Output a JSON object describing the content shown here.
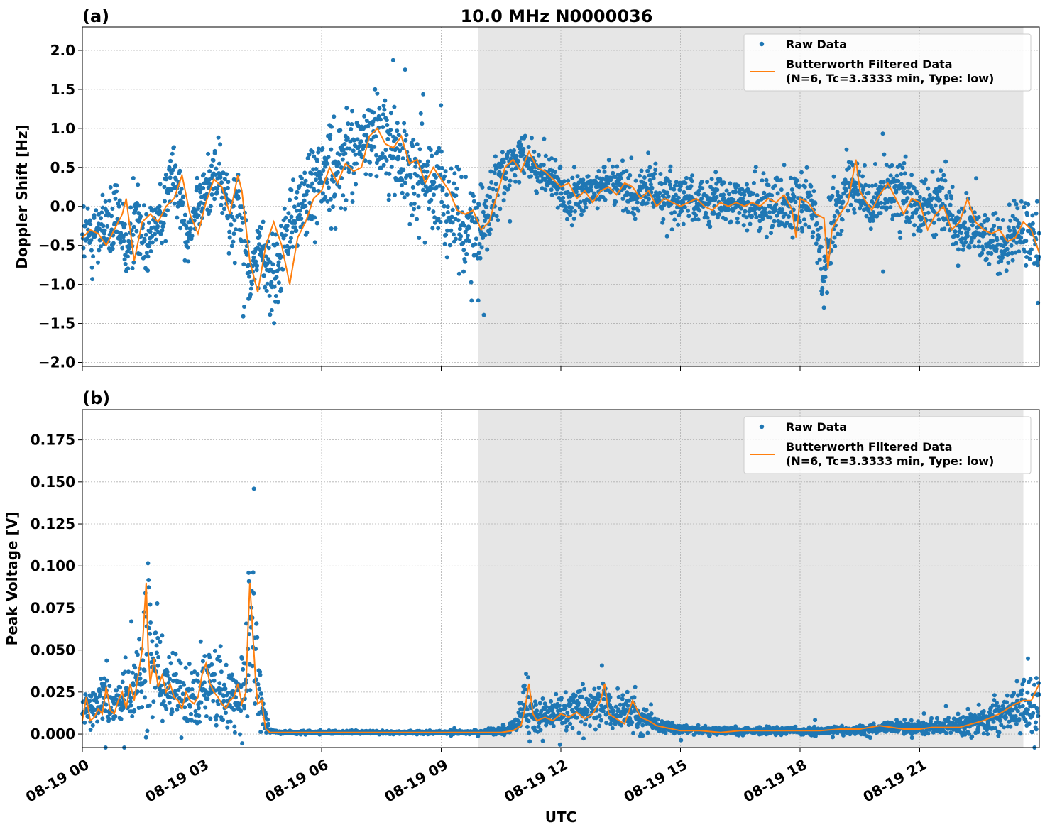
{
  "figure": {
    "title": "10.0 MHz N0000036",
    "xlabel": "UTC",
    "x_tick_labels": [
      "08-19 00",
      "08-19 03",
      "08-19 06",
      "08-19 09",
      "08-19 12",
      "08-19 15",
      "08-19 18",
      "08-19 21"
    ],
    "colors": {
      "raw": "#1f77b4",
      "filtered": "#ff7f0e",
      "shade": "#e6e6e6",
      "grid": "#b0b0b0"
    }
  },
  "chart_data": [
    {
      "type": "scatter",
      "panel_label": "(a)",
      "title": "10.0 MHz N0000036",
      "ylabel": "Doppler Shift [Hz]",
      "xlabel": "",
      "x_unit": "hours UTC since 08-19 00",
      "xlim": [
        0,
        24
      ],
      "ylim": [
        -2.05,
        2.3
      ],
      "y_ticks": [
        -2.0,
        -1.5,
        -1.0,
        -0.5,
        0.0,
        0.5,
        1.0,
        1.5,
        2.0
      ],
      "y_tick_labels": [
        "−2.0",
        "−1.5",
        "−1.0",
        "−0.5",
        "0.0",
        "0.5",
        "1.0",
        "1.5",
        "2.0"
      ],
      "shaded_x": [
        9.93,
        23.6
      ],
      "grid": true,
      "legend": {
        "placement": "top-right",
        "entries": [
          "Raw Data",
          "Butterworth Filtered Data",
          "(N=6, Tc=3.3333 min, Type: low)"
        ]
      },
      "series": [
        {
          "name": "Raw Data",
          "kind": "points",
          "center_x": [
            0,
            0.5,
            0.9,
            1.15,
            1.35,
            1.6,
            2.0,
            2.3,
            2.6,
            2.85,
            3.1,
            3.4,
            3.7,
            3.9,
            4.2,
            4.45,
            4.8,
            5.2,
            5.6,
            6.0,
            6.5,
            7.0,
            7.4,
            7.8,
            8.2,
            8.6,
            9.0,
            9.3,
            9.6,
            9.9,
            10.2,
            10.6,
            11.0,
            11.4,
            11.8,
            12.2,
            12.6,
            13.0,
            13.4,
            13.8,
            14.2,
            14.6,
            15.0,
            15.5,
            16.0,
            16.5,
            17.0,
            17.5,
            17.9,
            18.3,
            18.6,
            18.9,
            19.3,
            19.7,
            20.1,
            20.5,
            21.0,
            21.5,
            22.0,
            22.5,
            23.0,
            23.4,
            24.0
          ],
          "center_y": [
            -0.4,
            -0.3,
            -0.2,
            -0.6,
            -0.1,
            -0.4,
            0.0,
            0.4,
            -0.3,
            -0.1,
            0.25,
            0.45,
            -0.2,
            0.1,
            -0.9,
            -0.5,
            -0.9,
            -0.2,
            0.1,
            0.35,
            0.55,
            0.8,
            1.0,
            0.7,
            0.5,
            0.3,
            0.2,
            -0.05,
            -0.25,
            -0.3,
            0.0,
            0.5,
            0.65,
            0.45,
            0.3,
            0.05,
            0.15,
            0.3,
            0.25,
            0.15,
            0.2,
            0.15,
            0.05,
            0.05,
            0.05,
            0.05,
            0.0,
            0.1,
            0.05,
            0.0,
            -0.8,
            0.0,
            0.4,
            0.0,
            0.1,
            0.2,
            -0.1,
            0.1,
            -0.3,
            -0.3,
            -0.5,
            -0.3,
            -0.4
          ],
          "spread": [
            0.4,
            0.4,
            0.4,
            0.35,
            0.4,
            0.4,
            0.4,
            0.35,
            0.35,
            0.35,
            0.35,
            0.35,
            0.4,
            0.45,
            0.35,
            0.45,
            0.5,
            0.5,
            0.5,
            0.5,
            0.5,
            0.5,
            0.5,
            0.55,
            0.55,
            0.55,
            0.55,
            0.55,
            0.6,
            0.65,
            0.55,
            0.3,
            0.25,
            0.25,
            0.25,
            0.25,
            0.25,
            0.25,
            0.25,
            0.25,
            0.25,
            0.3,
            0.3,
            0.3,
            0.3,
            0.3,
            0.3,
            0.35,
            0.35,
            0.35,
            0.4,
            0.4,
            0.4,
            0.35,
            0.35,
            0.35,
            0.35,
            0.35,
            0.35,
            0.35,
            0.35,
            0.35,
            0.4
          ]
        },
        {
          "name": "Butterworth Filtered Data",
          "kind": "line",
          "x": [
            0,
            0.2,
            0.4,
            0.6,
            0.8,
            1.0,
            1.1,
            1.3,
            1.5,
            1.7,
            1.9,
            2.1,
            2.3,
            2.5,
            2.7,
            2.9,
            3.1,
            3.3,
            3.5,
            3.7,
            3.9,
            4.0,
            4.2,
            4.4,
            4.6,
            4.8,
            5.0,
            5.2,
            5.4,
            5.6,
            5.8,
            6.0,
            6.2,
            6.4,
            6.6,
            6.8,
            7.0,
            7.2,
            7.4,
            7.6,
            7.8,
            8.0,
            8.2,
            8.4,
            8.6,
            8.8,
            9.0,
            9.2,
            9.4,
            9.6,
            9.8,
            10.0,
            10.2,
            10.4,
            10.6,
            10.8,
            11.0,
            11.2,
            11.4,
            11.6,
            11.8,
            12.0,
            12.2,
            12.4,
            12.6,
            12.8,
            13.0,
            13.2,
            13.4,
            13.6,
            13.8,
            14.0,
            14.2,
            14.4,
            14.6,
            14.8,
            15.0,
            15.2,
            15.4,
            15.6,
            15.8,
            16.0,
            16.2,
            16.4,
            16.6,
            16.8,
            17.0,
            17.2,
            17.4,
            17.6,
            17.8,
            17.9,
            18.0,
            18.2,
            18.4,
            18.6,
            18.7,
            18.8,
            19.0,
            19.2,
            19.4,
            19.5,
            19.6,
            19.8,
            20.0,
            20.2,
            20.4,
            20.6,
            20.8,
            21.0,
            21.2,
            21.4,
            21.6,
            21.8,
            22.0,
            22.2,
            22.4,
            22.6,
            22.8,
            23.0,
            23.2,
            23.4,
            23.6,
            23.8,
            24.0
          ],
          "y": [
            -0.4,
            -0.3,
            -0.35,
            -0.5,
            -0.3,
            -0.1,
            0.1,
            -0.7,
            -0.2,
            -0.1,
            -0.2,
            0.0,
            0.1,
            0.4,
            -0.1,
            -0.35,
            0.05,
            0.35,
            0.25,
            -0.1,
            0.4,
            0.2,
            -0.7,
            -1.1,
            -0.5,
            -0.2,
            -0.5,
            -1.0,
            -0.4,
            -0.2,
            0.1,
            0.2,
            0.5,
            0.3,
            0.55,
            0.45,
            0.5,
            0.9,
            1.0,
            0.8,
            0.75,
            0.9,
            0.55,
            0.6,
            0.3,
            0.5,
            0.35,
            0.2,
            -0.05,
            -0.1,
            -0.05,
            -0.3,
            -0.2,
            0.15,
            0.5,
            0.6,
            0.45,
            0.7,
            0.5,
            0.45,
            0.35,
            0.25,
            0.3,
            0.1,
            0.2,
            0.05,
            0.2,
            0.25,
            0.15,
            0.3,
            0.25,
            0.1,
            0.2,
            0.0,
            0.1,
            0.05,
            0.0,
            0.05,
            0.1,
            0.0,
            -0.05,
            0.05,
            0.0,
            0.05,
            0.0,
            0.05,
            0.0,
            0.1,
            0.05,
            0.15,
            -0.05,
            -0.4,
            0.1,
            0.05,
            -0.1,
            -0.15,
            -0.8,
            -0.3,
            -0.1,
            0.05,
            0.6,
            0.2,
            0.1,
            -0.05,
            0.15,
            0.3,
            0.1,
            -0.1,
            0.1,
            0.05,
            -0.3,
            -0.1,
            0.0,
            -0.3,
            -0.2,
            0.1,
            -0.2,
            -0.3,
            -0.35,
            -0.3,
            -0.45,
            -0.4,
            -0.2,
            -0.3,
            -0.6
          ]
        }
      ]
    },
    {
      "type": "scatter",
      "panel_label": "(b)",
      "title": "",
      "ylabel": "Peak Voltage [V]",
      "xlabel": "UTC",
      "x_unit": "hours UTC since 08-19 00",
      "xlim": [
        0,
        24
      ],
      "ylim": [
        -0.008,
        0.193
      ],
      "y_ticks": [
        0.0,
        0.025,
        0.05,
        0.075,
        0.1,
        0.125,
        0.15,
        0.175
      ],
      "y_tick_labels": [
        "0.000",
        "0.025",
        "0.050",
        "0.075",
        "0.100",
        "0.125",
        "0.150",
        "0.175"
      ],
      "shaded_x": [
        9.93,
        23.6
      ],
      "grid": true,
      "legend": {
        "placement": "top-right",
        "entries": [
          "Raw Data",
          "Butterworth Filtered Data",
          "(N=6, Tc=3.3333 min, Type: low)"
        ]
      },
      "series": [
        {
          "name": "Raw Data",
          "kind": "points",
          "center_x": [
            0,
            0.3,
            0.6,
            0.9,
            1.2,
            1.5,
            1.6,
            1.8,
            2.1,
            2.5,
            2.9,
            3.2,
            3.5,
            3.8,
            4.1,
            4.25,
            4.4,
            4.55,
            4.7,
            5.0,
            6.0,
            7.0,
            8.0,
            9.0,
            10.0,
            10.5,
            10.9,
            11.1,
            11.3,
            11.7,
            12.2,
            12.7,
            13.0,
            13.3,
            13.7,
            14.0,
            14.5,
            15.0,
            16.0,
            17.0,
            18.0,
            19.0,
            20.0,
            20.5,
            21.0,
            21.5,
            22.0,
            22.5,
            23.0,
            23.5,
            24.0
          ],
          "center_y": [
            0.012,
            0.018,
            0.02,
            0.018,
            0.025,
            0.04,
            0.06,
            0.035,
            0.03,
            0.022,
            0.025,
            0.03,
            0.025,
            0.02,
            0.03,
            0.07,
            0.03,
            0.01,
            0.002,
            0.001,
            0.001,
            0.001,
            0.001,
            0.001,
            0.001,
            0.002,
            0.005,
            0.02,
            0.01,
            0.012,
            0.015,
            0.015,
            0.02,
            0.012,
            0.015,
            0.01,
            0.005,
            0.003,
            0.002,
            0.002,
            0.002,
            0.002,
            0.003,
            0.004,
            0.003,
            0.004,
            0.005,
            0.007,
            0.01,
            0.015,
            0.02
          ],
          "spread": [
            0.006,
            0.012,
            0.014,
            0.013,
            0.018,
            0.03,
            0.05,
            0.03,
            0.02,
            0.015,
            0.018,
            0.022,
            0.02,
            0.015,
            0.025,
            0.05,
            0.02,
            0.008,
            0.001,
            0.0008,
            0.0008,
            0.0008,
            0.0008,
            0.0008,
            0.001,
            0.002,
            0.004,
            0.02,
            0.008,
            0.008,
            0.01,
            0.01,
            0.015,
            0.01,
            0.012,
            0.008,
            0.004,
            0.002,
            0.002,
            0.002,
            0.002,
            0.002,
            0.003,
            0.004,
            0.003,
            0.004,
            0.005,
            0.008,
            0.01,
            0.012,
            0.016
          ]
        },
        {
          "name": "Butterworth Filtered Data",
          "kind": "line",
          "x": [
            0,
            0.1,
            0.2,
            0.3,
            0.4,
            0.5,
            0.6,
            0.7,
            0.8,
            0.9,
            1.0,
            1.1,
            1.2,
            1.3,
            1.4,
            1.5,
            1.55,
            1.6,
            1.65,
            1.7,
            1.8,
            1.9,
            2.0,
            2.1,
            2.2,
            2.3,
            2.4,
            2.5,
            2.6,
            2.7,
            2.8,
            2.9,
            3.0,
            3.1,
            3.2,
            3.3,
            3.4,
            3.5,
            3.6,
            3.7,
            3.8,
            3.9,
            4.0,
            4.1,
            4.15,
            4.2,
            4.25,
            4.3,
            4.35,
            4.4,
            4.5,
            4.55,
            4.6,
            4.7,
            5.0,
            6.0,
            7.0,
            8.0,
            9.0,
            10.0,
            10.5,
            10.8,
            11.0,
            11.1,
            11.2,
            11.3,
            11.4,
            11.6,
            11.8,
            12.0,
            12.2,
            12.4,
            12.6,
            12.8,
            13.0,
            13.1,
            13.2,
            13.4,
            13.6,
            13.8,
            13.9,
            14.0,
            14.2,
            14.4,
            14.6,
            14.8,
            15.0,
            15.5,
            16.0,
            16.5,
            17.0,
            17.5,
            18.0,
            18.5,
            19.0,
            19.5,
            20.0,
            20.3,
            20.6,
            21.0,
            21.3,
            21.6,
            22.0,
            22.3,
            22.6,
            22.8,
            23.0,
            23.2,
            23.4,
            23.6,
            23.8,
            24.0
          ],
          "y": [
            0.008,
            0.022,
            0.008,
            0.01,
            0.015,
            0.012,
            0.028,
            0.014,
            0.012,
            0.02,
            0.025,
            0.015,
            0.03,
            0.02,
            0.035,
            0.05,
            0.07,
            0.09,
            0.05,
            0.03,
            0.045,
            0.028,
            0.035,
            0.025,
            0.03,
            0.022,
            0.02,
            0.015,
            0.025,
            0.02,
            0.018,
            0.022,
            0.035,
            0.042,
            0.03,
            0.025,
            0.022,
            0.018,
            0.015,
            0.02,
            0.022,
            0.03,
            0.018,
            0.025,
            0.06,
            0.09,
            0.07,
            0.05,
            0.03,
            0.018,
            0.02,
            0.01,
            0.003,
            0.001,
            0.001,
            0.001,
            0.001,
            0.001,
            0.001,
            0.001,
            0.001,
            0.002,
            0.005,
            0.015,
            0.03,
            0.012,
            0.008,
            0.01,
            0.008,
            0.012,
            0.01,
            0.013,
            0.009,
            0.012,
            0.02,
            0.03,
            0.012,
            0.009,
            0.006,
            0.02,
            0.015,
            0.01,
            0.008,
            0.005,
            0.004,
            0.003,
            0.002,
            0.002,
            0.001,
            0.002,
            0.002,
            0.002,
            0.002,
            0.002,
            0.003,
            0.003,
            0.005,
            0.004,
            0.003,
            0.003,
            0.004,
            0.004,
            0.004,
            0.006,
            0.008,
            0.01,
            0.012,
            0.015,
            0.018,
            0.02,
            0.02,
            0.03
          ]
        }
      ]
    }
  ]
}
